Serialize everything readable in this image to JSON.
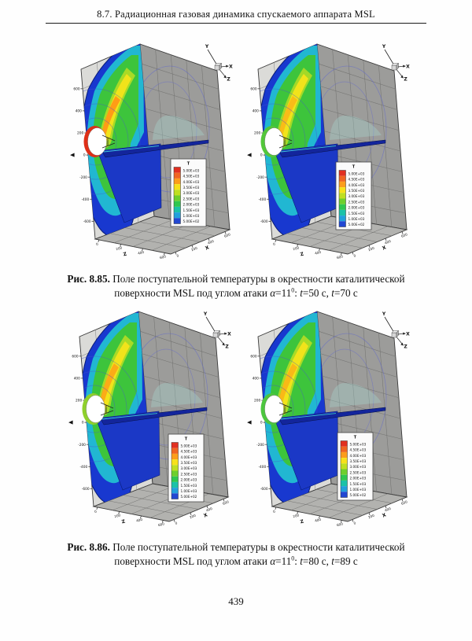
{
  "page": {
    "header": "8.7. Радиационная газовая динамика спускаемого аппарата MSL",
    "page_number": "439"
  },
  "figures": [
    {
      "caption_segments": [
        {
          "text": "Рис. 8.85. ",
          "bold": true
        },
        {
          "text": "Поле поступательной температуры в окрестности каталитической поверхности MSL под углом атаки "
        },
        {
          "text": "α",
          "italic": true
        },
        {
          "text": "=11"
        },
        {
          "text": "0",
          "sup": true
        },
        {
          "text": ": "
        },
        {
          "text": "t",
          "italic": true
        },
        {
          "text": "=50 с, "
        },
        {
          "text": "t",
          "italic": true
        },
        {
          "text": "=70 с"
        }
      ],
      "plot_indices": [
        0,
        1
      ]
    },
    {
      "caption_segments": [
        {
          "text": "Рис. 8.86. ",
          "bold": true
        },
        {
          "text": "Поле поступательной температуры в окрестности каталитической поверхности MSL под углом атаки "
        },
        {
          "text": "α",
          "italic": true
        },
        {
          "text": "=11"
        },
        {
          "text": "0",
          "sup": true
        },
        {
          "text": ": "
        },
        {
          "text": "t",
          "italic": true
        },
        {
          "text": "=80 с, "
        },
        {
          "text": "t",
          "italic": true
        },
        {
          "text": "=89 с"
        }
      ],
      "plot_indices": [
        2,
        3
      ]
    }
  ],
  "chart_data": [
    {
      "type": "heatmap",
      "title": "T",
      "legend": {
        "title": "T",
        "levels": [
          "5.00E+03",
          "4.50E+03",
          "4.00E+03",
          "3.50E+03",
          "3.00E+03",
          "2.50E+03",
          "2.00E+03",
          "1.50E+03",
          "1.00E+03",
          "5.00E+02"
        ],
        "colors": [
          "#e13021",
          "#f06522",
          "#fc9d1c",
          "#f7e11a",
          "#bfdf20",
          "#6ecf2c",
          "#2fc74f",
          "#1cc2a8",
          "#22a0dc",
          "#2247d2"
        ]
      },
      "axes": {
        "y_label": "Y",
        "x_label": "X",
        "z_label": "Z",
        "y_ticks": [
          "600",
          "400",
          "200",
          "0",
          "-200",
          "-400",
          "-600"
        ],
        "x_ticks": [
          "0",
          "200",
          "400",
          "600"
        ],
        "z_ticks": [
          "0",
          "200",
          "400",
          "600"
        ]
      }
    },
    {
      "type": "heatmap",
      "title": "T",
      "legend": {
        "title": "T",
        "levels": [
          "5.00E+03",
          "4.50E+03",
          "4.00E+03",
          "3.50E+03",
          "3.00E+03",
          "2.50E+03",
          "2.00E+03",
          "1.50E+03",
          "1.00E+03",
          "5.00E+02"
        ],
        "colors": [
          "#e13021",
          "#f06522",
          "#fc9d1c",
          "#f7e11a",
          "#bfdf20",
          "#6ecf2c",
          "#2fc74f",
          "#1cc2a8",
          "#22a0dc",
          "#2247d2"
        ]
      },
      "axes": {
        "y_label": "Y",
        "x_label": "X",
        "z_label": "Z",
        "y_ticks": [
          "600",
          "400",
          "200",
          "0",
          "-200",
          "-400",
          "-600"
        ],
        "x_ticks": [
          "0",
          "200",
          "400",
          "600"
        ],
        "z_ticks": [
          "0",
          "200",
          "400",
          "600"
        ]
      }
    },
    {
      "type": "heatmap",
      "title": "T",
      "legend": {
        "title": "T",
        "levels": [
          "5.00E+03",
          "4.50E+03",
          "4.00E+03",
          "3.50E+03",
          "3.00E+03",
          "2.50E+03",
          "2.00E+03",
          "1.50E+03",
          "1.00E+03",
          "5.00E+02"
        ],
        "colors": [
          "#e13021",
          "#f06522",
          "#fc9d1c",
          "#f7e11a",
          "#bfdf20",
          "#6ecf2c",
          "#2fc74f",
          "#1cc2a8",
          "#22a0dc",
          "#2247d2"
        ]
      },
      "axes": {
        "y_label": "Y",
        "x_label": "X",
        "z_label": "Z",
        "y_ticks": [
          "600",
          "400",
          "200",
          "0",
          "-200",
          "-400",
          "-600"
        ],
        "x_ticks": [
          "0",
          "200",
          "400",
          "600"
        ],
        "z_ticks": [
          "0",
          "200",
          "400",
          "600"
        ]
      }
    },
    {
      "type": "heatmap",
      "title": "T",
      "legend": {
        "title": "T",
        "levels": [
          "5.00E+03",
          "4.50E+03",
          "4.00E+03",
          "3.50E+03",
          "3.00E+03",
          "2.50E+03",
          "2.00E+03",
          "1.50E+03",
          "1.00E+03",
          "5.00E+02"
        ],
        "colors": [
          "#e13021",
          "#f06522",
          "#fc9d1c",
          "#f7e11a",
          "#bfdf20",
          "#6ecf2c",
          "#2fc74f",
          "#1cc2a8",
          "#22a0dc",
          "#2247d2"
        ]
      },
      "axes": {
        "y_label": "Y",
        "x_label": "X",
        "z_label": "Z",
        "y_ticks": [
          "600",
          "400",
          "200",
          "0",
          "-200",
          "-400",
          "-600"
        ],
        "x_ticks": [
          "0",
          "200",
          "400",
          "600"
        ],
        "z_ticks": [
          "0",
          "200",
          "400",
          "600"
        ]
      }
    }
  ]
}
